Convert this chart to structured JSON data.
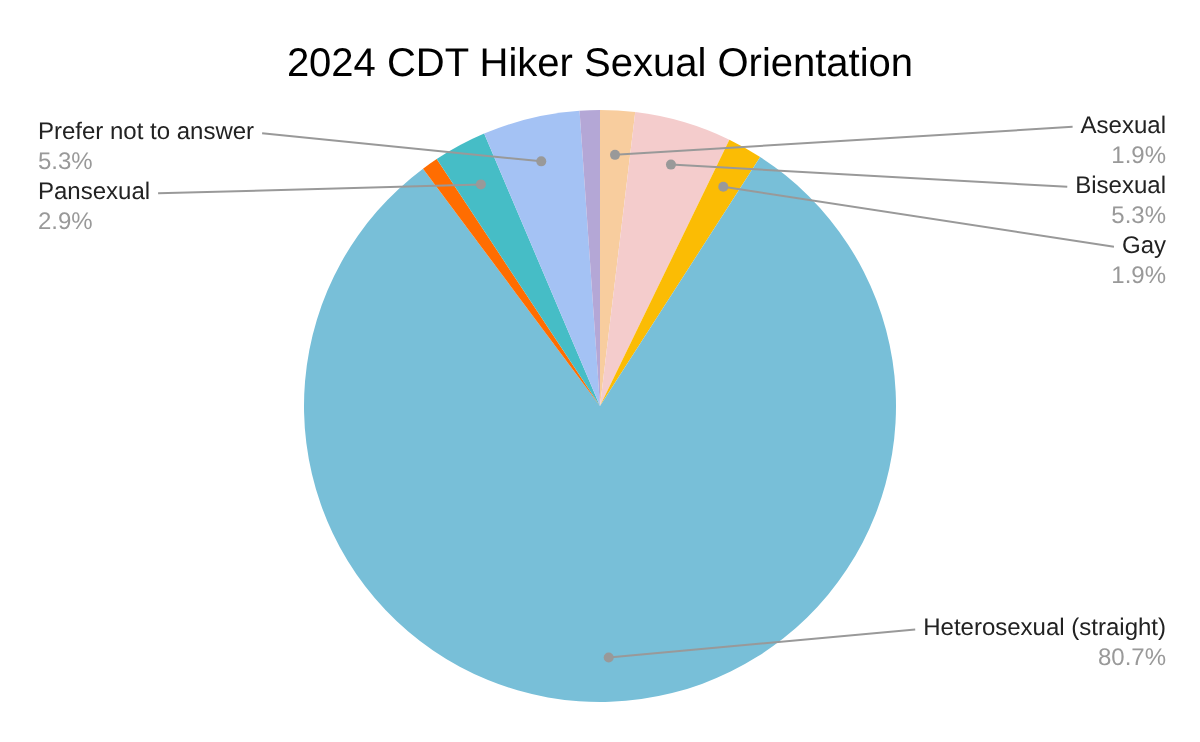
{
  "chart_data": {
    "type": "pie",
    "title": "2024 CDT Hiker Sexual Orientation",
    "categories": [
      "Asexual",
      "Bisexual",
      "Gay",
      "Heterosexual (straight)",
      null,
      "Pansexual",
      "Prefer not to answer",
      null
    ],
    "values": [
      1.9,
      5.3,
      1.9,
      80.7,
      0.9,
      2.9,
      5.3,
      1.1
    ],
    "colors": [
      "#f8cd9e",
      "#f4cccc",
      "#fbbc04",
      "#78bfd8",
      "#ff6d01",
      "#46bdc6",
      "#a4c2f4",
      "#b4a7d6"
    ],
    "value_labels": [
      "1.9%",
      "5.3%",
      "1.9%",
      "80.7%",
      null,
      "2.9%",
      "5.3%",
      null
    ]
  }
}
